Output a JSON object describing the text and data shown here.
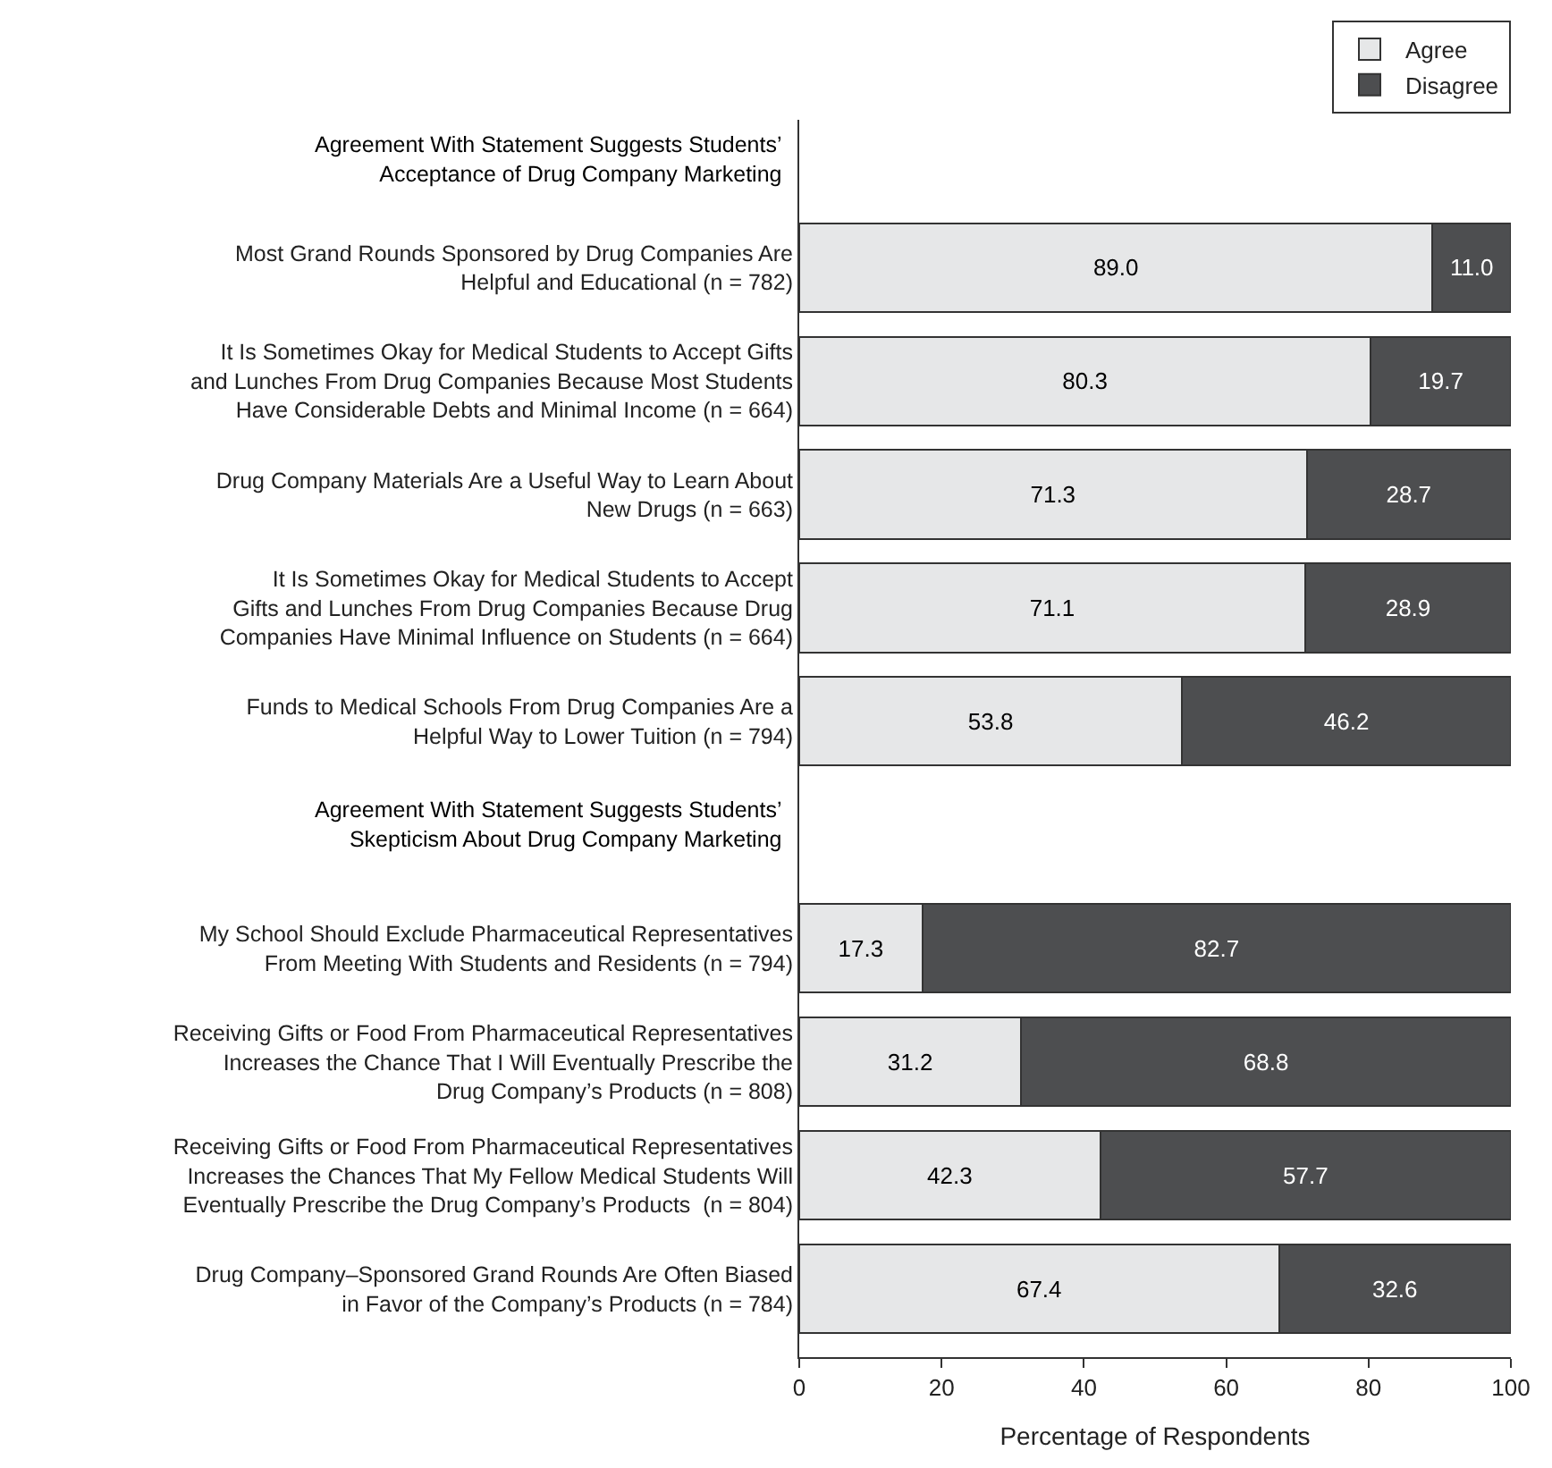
{
  "chart_data": {
    "type": "bar",
    "orientation": "horizontal",
    "stacked": true,
    "xlabel": "Percentage of Respondents",
    "categories": [
      "Most Grand Rounds Sponsored by Drug Companies Are\nHelpful and Educational (n = 782)",
      "It Is Sometimes Okay for Medical Students to Accept Gifts\nand Lunches From Drug Companies Because Most Students\nHave Considerable Debts and Minimal Income (n = 664)",
      "Drug Company Materials Are a Useful Way to Learn About\nNew Drugs (n = 663)",
      "It Is Sometimes Okay for Medical Students to Accept\nGifts and Lunches From Drug Companies Because Drug\nCompanies Have Minimal Influence on Students (n = 664)",
      "Funds to Medical Schools From Drug Companies Are a\nHelpful Way to Lower Tuition (n = 794)",
      null,
      "My School Should Exclude Pharmaceutical Representatives\nFrom Meeting With Students and Residents (n = 794)",
      "Receiving Gifts or Food From Pharmaceutical Representatives\nIncreases the Chance That I Will Eventually Prescribe the\nDrug Company’s Products (n = 808)",
      "Receiving Gifts or Food From Pharmaceutical Representatives\nIncreases the Chances That My Fellow Medical Students Will\nEventually Prescribe the Drug Company’s Products  (n = 804)",
      "Drug Company–Sponsored Grand Rounds Are Often Biased\nin Favor of the Company’s Products (n = 784)"
    ],
    "series": [
      {
        "name": "Agree",
        "color": "#e6e7e8",
        "values": [
          89.0,
          80.3,
          71.3,
          71.1,
          53.8,
          null,
          17.3,
          31.2,
          42.3,
          67.4
        ],
        "value_labels": [
          "89.0",
          "80.3",
          "71.3",
          "71.1",
          "53.8",
          null,
          "17.3",
          "31.2",
          "42.3",
          "67.4"
        ]
      },
      {
        "name": "Disagree",
        "color": "#4d4e50",
        "values": [
          11.0,
          19.7,
          28.7,
          28.9,
          46.2,
          null,
          82.7,
          68.8,
          57.7,
          32.6
        ],
        "value_labels": [
          "11.0",
          "19.7",
          "28.7",
          "28.9",
          "46.2",
          null,
          "82.7",
          "68.8",
          "57.7",
          "32.6"
        ]
      }
    ],
    "annotations": [
      "Agreement With Statement Suggests Students’\nAcceptance of Drug Company Marketing",
      "Agreement With Statement Suggests Students’\nSkepticism About Drug Company Marketing"
    ],
    "xlim": [
      0,
      100
    ],
    "xticks": [
      0,
      20,
      40,
      60,
      80,
      100
    ],
    "legend": "top right"
  }
}
